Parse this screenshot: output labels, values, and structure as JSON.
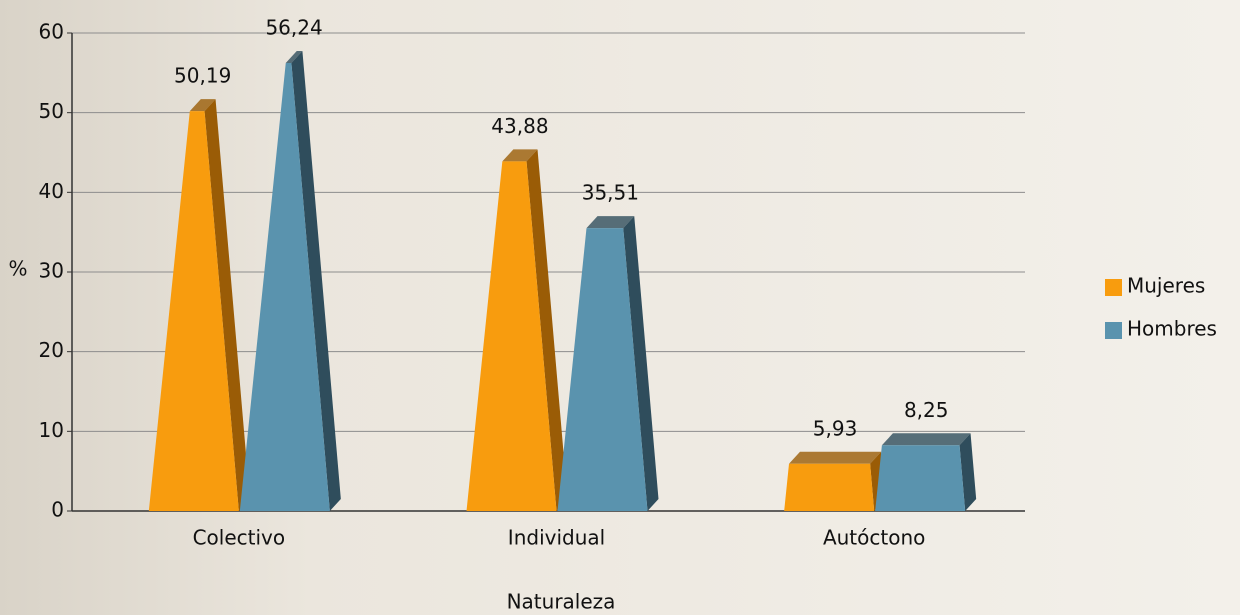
{
  "chart_data": {
    "type": "bar",
    "categories": [
      "Colectivo",
      "Individual",
      "Autóctono"
    ],
    "series": [
      {
        "name": "Mujeres",
        "color": "#f89c0e",
        "side_color": "#9a5c06",
        "values": [
          50.19,
          43.88,
          5.93
        ],
        "value_labels": [
          "50,19",
          "43,88",
          "5,93"
        ]
      },
      {
        "name": "Hombres",
        "color": "#5a93ae",
        "side_color": "#2f4d5c",
        "values": [
          56.24,
          35.51,
          8.25
        ],
        "value_labels": [
          "56,24",
          "35,51",
          "8,25"
        ]
      }
    ],
    "ylabel": "%",
    "xlabel": "Naturaleza",
    "ylim": [
      0,
      60
    ],
    "yticks": [
      0,
      10,
      20,
      30,
      40,
      50,
      60
    ],
    "grid": true,
    "legend": "right"
  }
}
